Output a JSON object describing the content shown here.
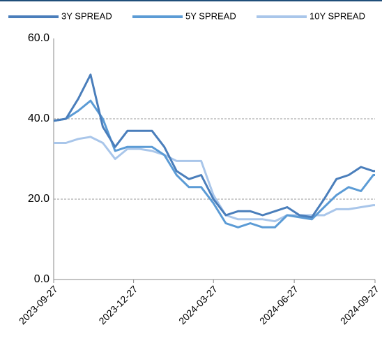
{
  "chart_data": {
    "type": "line",
    "x": [
      "2023-09-27",
      "2023-10-11",
      "2023-10-25",
      "2023-11-08",
      "2023-11-22",
      "2023-12-06",
      "2023-12-20",
      "2024-01-03",
      "2024-01-17",
      "2024-01-31",
      "2024-02-14",
      "2024-02-28",
      "2024-03-13",
      "2024-03-27",
      "2024-04-10",
      "2024-04-24",
      "2024-05-08",
      "2024-05-22",
      "2024-06-05",
      "2024-06-19",
      "2024-07-03",
      "2024-07-17",
      "2024-07-31",
      "2024-08-14",
      "2024-08-28",
      "2024-09-11",
      "2024-09-25",
      "2024-09-27"
    ],
    "series": [
      {
        "name": "3Y SPREAD",
        "color": "#4a7ebb",
        "values": [
          39.5,
          40,
          45,
          51,
          38,
          33,
          37,
          37,
          37,
          33,
          27,
          25,
          26,
          20,
          16,
          17,
          17,
          16,
          17,
          18,
          16,
          15.5,
          20,
          25,
          26,
          28,
          27,
          27
        ]
      },
      {
        "name": "5Y SPREAD",
        "color": "#5b9bd5",
        "values": [
          39.5,
          40,
          42,
          44.5,
          40,
          32,
          33,
          33,
          33,
          31,
          26,
          23,
          23,
          19,
          14,
          13,
          14,
          13,
          13,
          16,
          15.5,
          15,
          18,
          21,
          23,
          22,
          26,
          26
        ]
      },
      {
        "name": "10Y SPREAD",
        "color": "#a9c6ea",
        "values": [
          34,
          34,
          35,
          35.5,
          34,
          30,
          32.5,
          32.5,
          32,
          31,
          29.5,
          29.5,
          29.5,
          21,
          16,
          15,
          15,
          15,
          14.5,
          16,
          16,
          16,
          16,
          17.5,
          17.5,
          18,
          18.5,
          18.5
        ]
      }
    ],
    "xlim": [
      "2023-09-27",
      "2024-09-27"
    ],
    "xticks": [
      "2023-09-27",
      "2023-12-27",
      "2024-03-27",
      "2024-06-27",
      "2024-09-27"
    ],
    "ylim": [
      0,
      60
    ],
    "yticks": [
      {
        "value": 0,
        "label": "0.0"
      },
      {
        "value": 20,
        "label": "20.0"
      },
      {
        "value": 40,
        "label": "40.0"
      },
      {
        "value": 60,
        "label": "60.0"
      }
    ],
    "grid": true,
    "legend": "top"
  }
}
